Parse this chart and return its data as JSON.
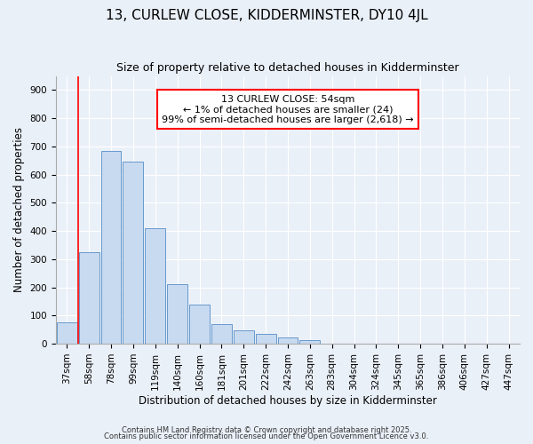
{
  "title": "13, CURLEW CLOSE, KIDDERMINSTER, DY10 4JL",
  "subtitle": "Size of property relative to detached houses in Kidderminster",
  "xlabel": "Distribution of detached houses by size in Kidderminster",
  "ylabel": "Number of detached properties",
  "bar_labels": [
    "37sqm",
    "58sqm",
    "78sqm",
    "99sqm",
    "119sqm",
    "140sqm",
    "160sqm",
    "181sqm",
    "201sqm",
    "222sqm",
    "242sqm",
    "263sqm",
    "283sqm",
    "304sqm",
    "324sqm",
    "345sqm",
    "365sqm",
    "386sqm",
    "406sqm",
    "427sqm",
    "447sqm"
  ],
  "bar_values": [
    75,
    325,
    685,
    645,
    410,
    210,
    140,
    70,
    48,
    35,
    22,
    12,
    0,
    0,
    0,
    0,
    0,
    0,
    0,
    0,
    0
  ],
  "bar_color": "#c8daf0",
  "bar_edge_color": "#6699cc",
  "ylim": [
    0,
    950
  ],
  "yticks": [
    0,
    100,
    200,
    300,
    400,
    500,
    600,
    700,
    800,
    900
  ],
  "red_line_x": 0.5,
  "annotation_text": "13 CURLEW CLOSE: 54sqm\n← 1% of detached houses are smaller (24)\n99% of semi-detached houses are larger (2,618) →",
  "footer_line1": "Contains HM Land Registry data © Crown copyright and database right 2025.",
  "footer_line2": "Contains public sector information licensed under the Open Government Licence v3.0.",
  "bg_color": "#eaf0f8",
  "title_fontsize": 11,
  "subtitle_fontsize": 9,
  "axis_label_fontsize": 8.5,
  "tick_fontsize": 7.5,
  "annotation_fontsize": 8
}
